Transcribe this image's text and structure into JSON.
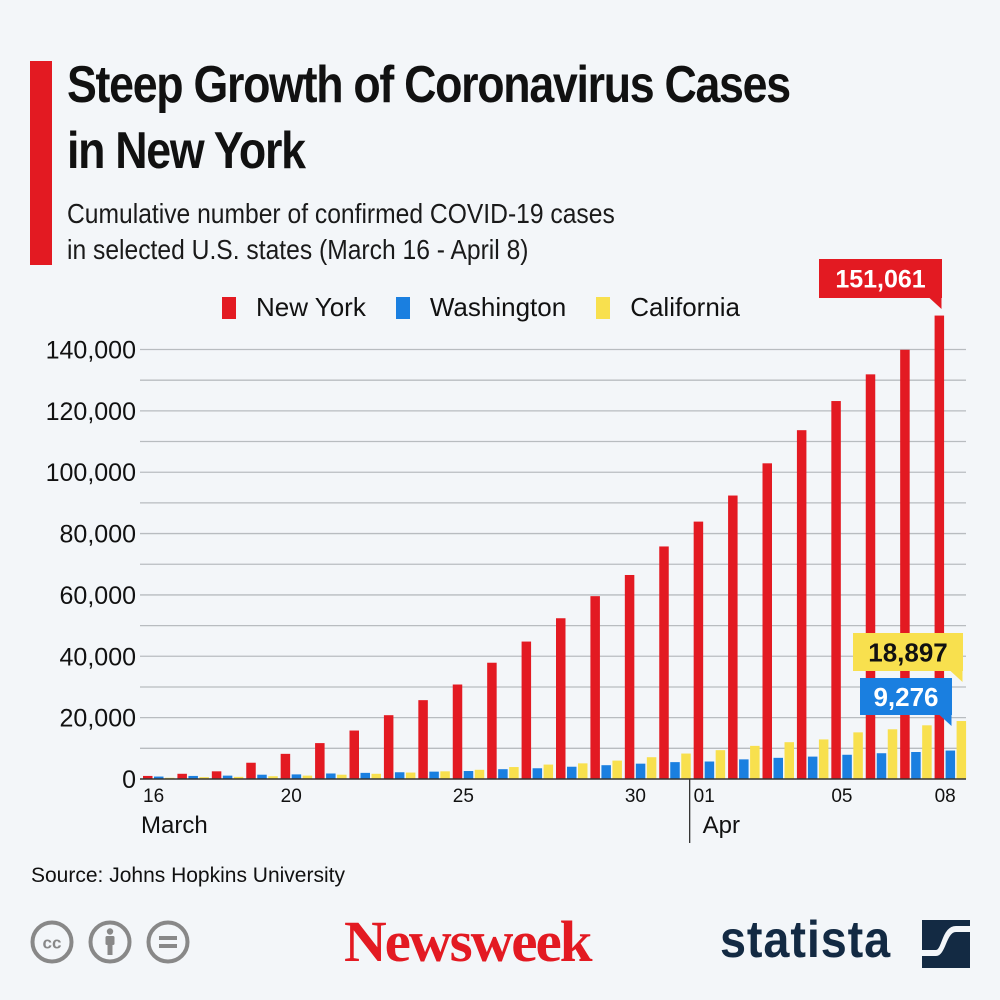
{
  "header": {
    "title": "Steep Growth of Coronavirus Cases\nin New York",
    "subtitle_line1": "Cumulative number of confirmed COVID-19 cases",
    "subtitle_line2": "in selected U.S. states (March 16 - April 8)"
  },
  "colors": {
    "accent": "#e31a22",
    "new_york": "#e31a22",
    "washington": "#1a7fe0",
    "california": "#f8e04e",
    "gridline": "#b8bcc0",
    "axis": "#333333",
    "background": "#f3f6f9",
    "statista": "#132a43",
    "cc_icon": "#888888"
  },
  "chart_data": {
    "type": "bar",
    "title": "Steep Growth of Coronavirus Cases in New York",
    "subtitle": "Cumulative number of confirmed COVID-19 cases in selected U.S. states (March 16 - April 8)",
    "xlabel": "",
    "ylabel": "",
    "ylim": [
      0,
      150000
    ],
    "grid": true,
    "gridline_step": 10000,
    "legend_position": "top",
    "yticks": [
      0,
      20000,
      40000,
      60000,
      80000,
      100000,
      120000,
      140000
    ],
    "ytick_labels": [
      "0",
      "20,000",
      "40,000",
      "60,000",
      "80,000",
      "100,000",
      "120,000",
      "140,000"
    ],
    "categories": [
      "Mar 16",
      "Mar 17",
      "Mar 18",
      "Mar 19",
      "Mar 20",
      "Mar 21",
      "Mar 22",
      "Mar 23",
      "Mar 24",
      "Mar 25",
      "Mar 26",
      "Mar 27",
      "Mar 28",
      "Mar 29",
      "Mar 30",
      "Mar 31",
      "Apr 01",
      "Apr 02",
      "Apr 03",
      "Apr 04",
      "Apr 05",
      "Apr 06",
      "Apr 07",
      "Apr 08"
    ],
    "xtick_labels": [
      {
        "index": 0,
        "label": "16"
      },
      {
        "index": 4,
        "label": "20"
      },
      {
        "index": 9,
        "label": "25"
      },
      {
        "index": 14,
        "label": "30"
      },
      {
        "index": 16,
        "label": "01"
      },
      {
        "index": 20,
        "label": "05"
      },
      {
        "index": 23,
        "label": "08"
      }
    ],
    "month_labels": [
      {
        "index": 0,
        "label": "March"
      },
      {
        "index": 16,
        "label": "Apr"
      }
    ],
    "series": [
      {
        "name": "New York",
        "key": "new_york",
        "values": [
          1000,
          1700,
          2500,
          5300,
          8200,
          11700,
          15800,
          20800,
          25700,
          30800,
          37900,
          44800,
          52400,
          59600,
          66500,
          75800,
          83900,
          92400,
          102900,
          113700,
          123200,
          131900,
          139900,
          151061
        ]
      },
      {
        "name": "Washington",
        "key": "washington",
        "values": [
          800,
          1000,
          1100,
          1400,
          1500,
          1800,
          2000,
          2200,
          2400,
          2600,
          3200,
          3500,
          4000,
          4500,
          5000,
          5500,
          5700,
          6400,
          6900,
          7300,
          7900,
          8400,
          8800,
          9276
        ]
      },
      {
        "name": "California",
        "key": "california",
        "values": [
          400,
          600,
          700,
          900,
          1100,
          1400,
          1700,
          2100,
          2500,
          3000,
          3900,
          4700,
          5100,
          6000,
          7100,
          8300,
          9400,
          10800,
          12000,
          12900,
          15200,
          16200,
          17500,
          18897
        ]
      }
    ],
    "annotations": [
      {
        "series": "New York",
        "index": 23,
        "label": "151,061"
      },
      {
        "series": "California",
        "index": 23,
        "label": "18,897"
      },
      {
        "series": "Washington",
        "index": 23,
        "label": "9,276"
      }
    ]
  },
  "legend": [
    {
      "label": "New York",
      "key": "new_york"
    },
    {
      "label": "Washington",
      "key": "washington"
    },
    {
      "label": "California",
      "key": "california"
    }
  ],
  "footer": {
    "source": "Source: Johns Hopkins University",
    "license_icons": [
      "cc-icon",
      "attribution-icon",
      "no-derivatives-icon"
    ],
    "newsweek_logo": "Newsweek",
    "statista_logo": "statista"
  }
}
